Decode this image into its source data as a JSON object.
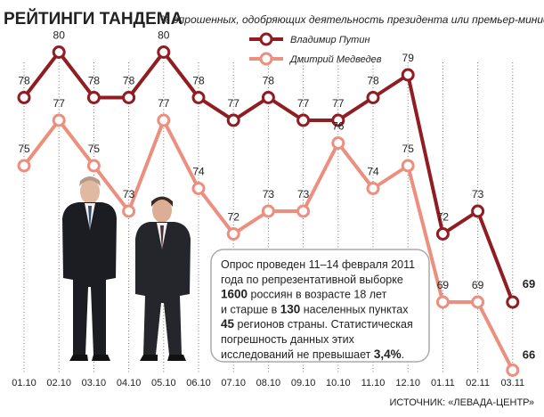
{
  "chart_data": {
    "type": "line",
    "title": "РЕЙТИНГИ ТАНДЕМА",
    "subtitle": "% опрошенных, одобряющих деятельность президента или премьер-министра",
    "categories": [
      "01.10",
      "02.10",
      "03.10",
      "04.10",
      "05.10",
      "06.10",
      "07.10",
      "08.10",
      "09.10",
      "10.10",
      "11.10",
      "12.10",
      "01.11",
      "02.11",
      "03.11"
    ],
    "series": [
      {
        "name": "Владимир Путин",
        "values": [
          78,
          80,
          78,
          78,
          80,
          78,
          77,
          78,
          77,
          77,
          78,
          79,
          72,
          73,
          69
        ],
        "color": "#8f1d22"
      },
      {
        "name": "Дмитрий Медведев",
        "values": [
          75,
          77,
          75,
          73,
          77,
          74,
          72,
          73,
          73,
          76,
          74,
          75,
          69,
          69,
          66
        ],
        "color": "#ec8f7e"
      }
    ],
    "ylim": [
      64,
      82
    ],
    "grid": "vertical dotted",
    "legend": "top-center",
    "source": "ИСТОЧНИК: «ЛЕВАДА-ЦЕНТР»"
  },
  "note": {
    "lines": [
      [
        {
          "t": "Опрос проведен 11–14 февраля 2011"
        }
      ],
      [
        {
          "t": "года по репрезентативной выборке"
        }
      ],
      [
        {
          "t": "1600",
          "b": true
        },
        {
          "t": " россиян в возрасте 18 лет"
        }
      ],
      [
        {
          "t": "и старше в "
        },
        {
          "t": "130",
          "b": true
        },
        {
          "t": " населенных пунктах"
        }
      ],
      [
        {
          "t": "45",
          "b": true
        },
        {
          "t": " регионов страны. Статистическая"
        }
      ],
      [
        {
          "t": "погрешность данных этих"
        }
      ],
      [
        {
          "t": "исследований не  превышает "
        },
        {
          "t": "3,4%",
          "b": true
        },
        {
          "t": "."
        }
      ]
    ]
  }
}
